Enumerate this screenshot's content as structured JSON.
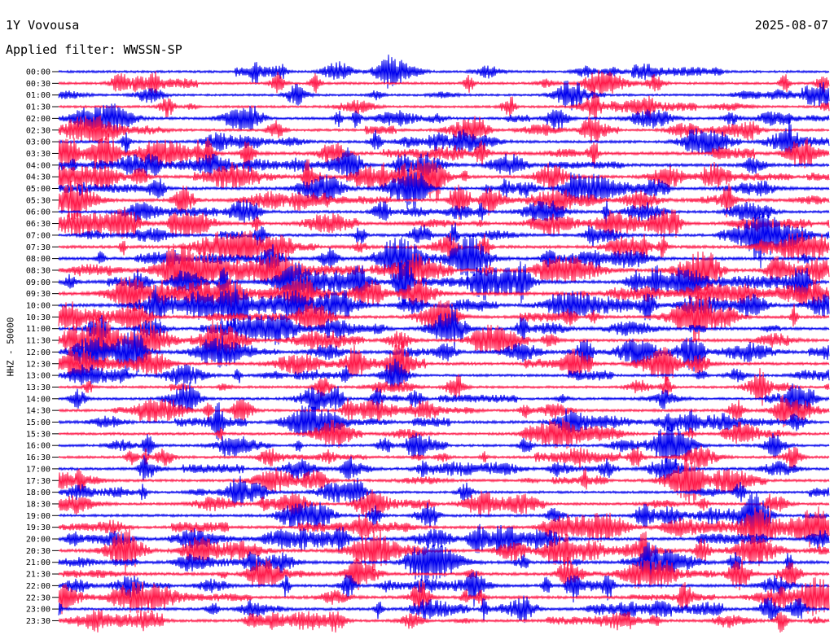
{
  "header": {
    "station": "1Y Vovousa",
    "date": "2025-08-07",
    "filter": "Applied filter: WWSSN-SP"
  },
  "chart_data": {
    "type": "line",
    "title": "1Y Vovousa",
    "subtitle": "Applied filter: WWSSN-SP",
    "date": "2025-08-07",
    "ylabel": "HHZ - 50000",
    "xlabel": "",
    "grid": false,
    "legend": "none",
    "trace_minutes": 30,
    "colors": [
      "#0000ee",
      "#ff1a4a"
    ],
    "rows": [
      {
        "label": "00:00",
        "activity": 0.45
      },
      {
        "label": "00:30",
        "activity": 0.5
      },
      {
        "label": "01:00",
        "activity": 0.4
      },
      {
        "label": "01:30",
        "activity": 0.45
      },
      {
        "label": "02:00",
        "activity": 0.55
      },
      {
        "label": "02:30",
        "activity": 0.55
      },
      {
        "label": "03:00",
        "activity": 0.6
      },
      {
        "label": "03:30",
        "activity": 0.85
      },
      {
        "label": "04:00",
        "activity": 0.8
      },
      {
        "label": "04:30",
        "activity": 0.75
      },
      {
        "label": "05:00",
        "activity": 0.7
      },
      {
        "label": "05:30",
        "activity": 0.8
      },
      {
        "label": "06:00",
        "activity": 0.6
      },
      {
        "label": "06:30",
        "activity": 0.7
      },
      {
        "label": "07:00",
        "activity": 0.65
      },
      {
        "label": "07:30",
        "activity": 0.75
      },
      {
        "label": "08:00",
        "activity": 0.75
      },
      {
        "label": "08:30",
        "activity": 0.85
      },
      {
        "label": "09:00",
        "activity": 0.9
      },
      {
        "label": "09:30",
        "activity": 0.95
      },
      {
        "label": "10:00",
        "activity": 0.85
      },
      {
        "label": "10:30",
        "activity": 0.75
      },
      {
        "label": "11:00",
        "activity": 0.7
      },
      {
        "label": "11:30",
        "activity": 0.75
      },
      {
        "label": "12:00",
        "activity": 0.8
      },
      {
        "label": "12:30",
        "activity": 0.7
      },
      {
        "label": "13:00",
        "activity": 0.55
      },
      {
        "label": "13:30",
        "activity": 0.5
      },
      {
        "label": "14:00",
        "activity": 0.55
      },
      {
        "label": "14:30",
        "activity": 0.6
      },
      {
        "label": "15:00",
        "activity": 0.65
      },
      {
        "label": "15:30",
        "activity": 0.55
      },
      {
        "label": "16:00",
        "activity": 0.55
      },
      {
        "label": "16:30",
        "activity": 0.55
      },
      {
        "label": "17:00",
        "activity": 0.6
      },
      {
        "label": "17:30",
        "activity": 0.6
      },
      {
        "label": "18:00",
        "activity": 0.5
      },
      {
        "label": "18:30",
        "activity": 0.55
      },
      {
        "label": "19:00",
        "activity": 0.6
      },
      {
        "label": "19:30",
        "activity": 0.7
      },
      {
        "label": "20:00",
        "activity": 0.75
      },
      {
        "label": "20:30",
        "activity": 0.8
      },
      {
        "label": "21:00",
        "activity": 0.8
      },
      {
        "label": "21:30",
        "activity": 0.75
      },
      {
        "label": "22:00",
        "activity": 0.7
      },
      {
        "label": "22:30",
        "activity": 0.75
      },
      {
        "label": "23:00",
        "activity": 0.65
      },
      {
        "label": "23:30",
        "activity": 0.6
      }
    ]
  }
}
